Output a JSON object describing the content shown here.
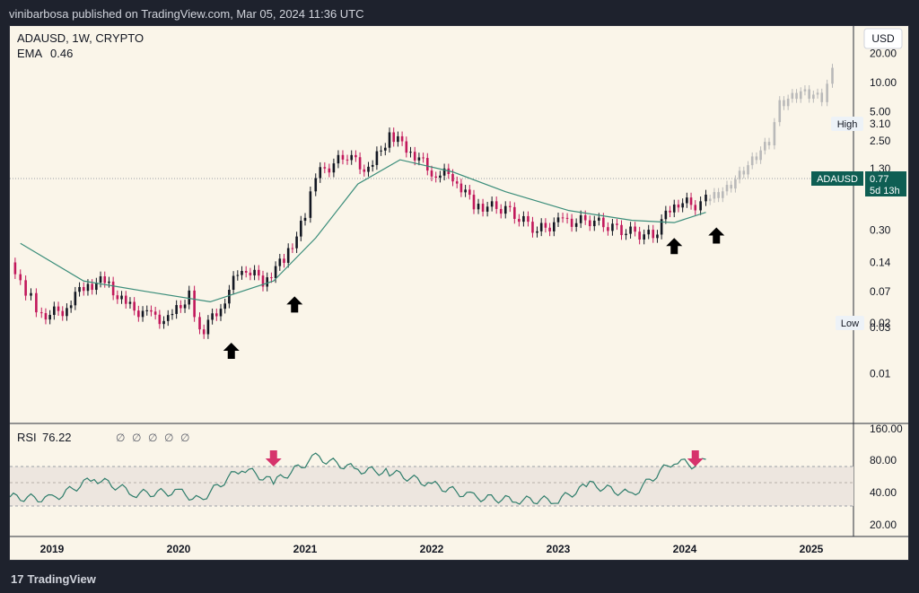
{
  "header": {
    "publisher_text": "vinibarbosa published on TradingView.com, Mar 05, 2024 11:36 UTC"
  },
  "symbol": {
    "title": "ADAUSD, 1W, CRYPTO",
    "ema_label": "EMA",
    "ema_value": "0.46"
  },
  "price_axis": {
    "currency_button": "USD",
    "ticks": [
      "20.00",
      "10.00",
      "5.00",
      "2.50",
      "1.30",
      "0.77",
      "0.30",
      "0.14",
      "0.07",
      "0.03",
      "0.02",
      "0.01"
    ],
    "high_label": "High",
    "high_value": "3.10",
    "low_label": "Low",
    "low_value": "0.02",
    "symbol_tag": "ADAUSD",
    "last_price": "0.77",
    "countdown": "5d 13h"
  },
  "rsi_panel": {
    "label": "RSI",
    "value": "76.22",
    "inputs": [
      "∅",
      "∅",
      "∅",
      "∅",
      "∅"
    ],
    "ticks": [
      "160.00",
      "80.00",
      "40.00",
      "20.00"
    ]
  },
  "time_axis": {
    "years": [
      "2019",
      "2020",
      "2021",
      "2022",
      "2023",
      "2024",
      "2025"
    ]
  },
  "footer": {
    "brand": "TradingView"
  },
  "colors": {
    "up": "#131722",
    "down": "#c2185b",
    "ema": "#3a8d7a",
    "projection": "#b9b9b9",
    "arrow_rsi": "#d6336c",
    "arrow_main": "#000000",
    "rsi_line": "#2e7d6b"
  },
  "chart_data": {
    "type": "candlestick",
    "title": "ADAUSD, 1W, CRYPTO",
    "y_scale": "log",
    "ylim": [
      0.005,
      25
    ],
    "x_range": [
      "2018-09",
      "2025-05"
    ],
    "price_path": [
      {
        "date": "2018-09",
        "close": 0.14
      },
      {
        "date": "2018-10",
        "close": 0.08
      },
      {
        "date": "2018-11",
        "close": 0.06
      },
      {
        "date": "2018-12",
        "close": 0.04
      },
      {
        "date": "2019-02",
        "close": 0.045
      },
      {
        "date": "2019-04",
        "close": 0.08
      },
      {
        "date": "2019-06",
        "close": 0.09
      },
      {
        "date": "2019-08",
        "close": 0.05
      },
      {
        "date": "2019-10",
        "close": 0.04
      },
      {
        "date": "2019-12",
        "close": 0.035
      },
      {
        "date": "2020-02",
        "close": 0.065
      },
      {
        "date": "2020-03",
        "close": 0.025
      },
      {
        "date": "2020-05",
        "close": 0.05
      },
      {
        "date": "2020-07",
        "close": 0.13
      },
      {
        "date": "2020-09",
        "close": 0.09
      },
      {
        "date": "2020-11",
        "close": 0.15
      },
      {
        "date": "2021-01",
        "close": 0.4
      },
      {
        "date": "2021-02",
        "close": 1.1
      },
      {
        "date": "2021-05",
        "close": 1.8
      },
      {
        "date": "2021-07",
        "close": 1.2
      },
      {
        "date": "2021-09",
        "close": 2.9
      },
      {
        "date": "2021-11",
        "close": 2.0
      },
      {
        "date": "2022-01",
        "close": 1.2
      },
      {
        "date": "2022-03",
        "close": 1.1
      },
      {
        "date": "2022-05",
        "close": 0.55
      },
      {
        "date": "2022-08",
        "close": 0.5
      },
      {
        "date": "2022-11",
        "close": 0.3
      },
      {
        "date": "2023-01",
        "close": 0.36
      },
      {
        "date": "2023-04",
        "close": 0.38
      },
      {
        "date": "2023-07",
        "close": 0.3
      },
      {
        "date": "2023-10",
        "close": 0.26
      },
      {
        "date": "2023-12",
        "close": 0.6
      },
      {
        "date": "2024-02",
        "close": 0.55
      },
      {
        "date": "2024-03",
        "close": 0.77
      }
    ],
    "projection_path": [
      {
        "date": "2024-03",
        "close": 0.6
      },
      {
        "date": "2024-05",
        "close": 0.8
      },
      {
        "date": "2024-07",
        "close": 1.4
      },
      {
        "date": "2024-09",
        "close": 2.5
      },
      {
        "date": "2024-10",
        "close": 6.0
      },
      {
        "date": "2024-12",
        "close": 8.0
      },
      {
        "date": "2025-02",
        "close": 7.0
      },
      {
        "date": "2025-03",
        "close": 13.0
      }
    ],
    "ema_path": [
      {
        "date": "2018-10",
        "value": 0.22
      },
      {
        "date": "2019-04",
        "value": 0.09
      },
      {
        "date": "2019-10",
        "value": 0.07
      },
      {
        "date": "2020-04",
        "value": 0.055
      },
      {
        "date": "2020-10",
        "value": 0.09
      },
      {
        "date": "2021-02",
        "value": 0.25
      },
      {
        "date": "2021-06",
        "value": 0.9
      },
      {
        "date": "2021-10",
        "value": 1.6
      },
      {
        "date": "2022-03",
        "value": 1.2
      },
      {
        "date": "2022-08",
        "value": 0.75
      },
      {
        "date": "2023-02",
        "value": 0.48
      },
      {
        "date": "2023-08",
        "value": 0.38
      },
      {
        "date": "2023-12",
        "value": 0.36
      },
      {
        "date": "2024-03",
        "value": 0.46
      }
    ],
    "up_arrows": [
      "2020-06",
      "2020-12",
      "2023-12",
      "2024-04"
    ],
    "rsi": {
      "label": "RSI",
      "bands": [
        30,
        70
      ],
      "path": [
        {
          "date": "2018-09",
          "value": 40
        },
        {
          "date": "2019-01",
          "value": 38
        },
        {
          "date": "2019-05",
          "value": 58
        },
        {
          "date": "2019-09",
          "value": 43
        },
        {
          "date": "2020-01",
          "value": 45
        },
        {
          "date": "2020-03",
          "value": 37
        },
        {
          "date": "2020-07",
          "value": 68
        },
        {
          "date": "2020-10",
          "value": 54
        },
        {
          "date": "2021-02",
          "value": 78
        },
        {
          "date": "2021-06",
          "value": 66
        },
        {
          "date": "2021-09",
          "value": 64
        },
        {
          "date": "2022-01",
          "value": 52
        },
        {
          "date": "2022-05",
          "value": 40
        },
        {
          "date": "2022-09",
          "value": 37
        },
        {
          "date": "2023-01",
          "value": 37
        },
        {
          "date": "2023-04",
          "value": 52
        },
        {
          "date": "2023-08",
          "value": 42
        },
        {
          "date": "2023-12",
          "value": 75
        },
        {
          "date": "2024-02",
          "value": 70
        },
        {
          "date": "2024-03",
          "value": 76
        }
      ],
      "down_arrows": [
        "2020-10",
        "2024-02"
      ]
    }
  }
}
